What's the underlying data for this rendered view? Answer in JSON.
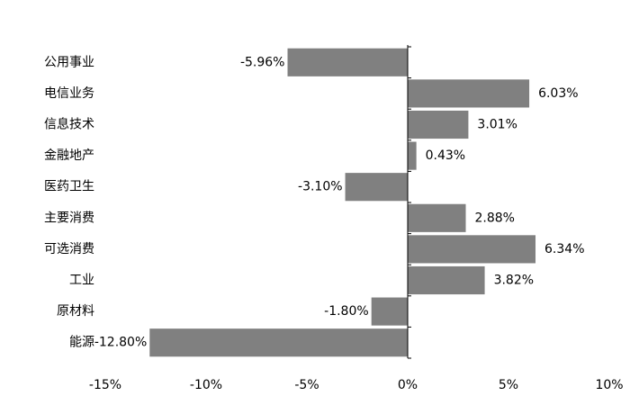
{
  "chart_data": {
    "type": "hbar",
    "categories": [
      "公用事业",
      "电信业务",
      "信息技术",
      "金融地产",
      "医药卫生",
      "主要消费",
      "可选消费",
      "工业",
      "原材料",
      "能源"
    ],
    "values": [
      -5.96,
      6.03,
      3.01,
      0.43,
      -3.1,
      2.88,
      6.34,
      3.82,
      -1.8,
      -12.8
    ],
    "value_labels": [
      "-5.96%",
      "6.03%",
      "3.01%",
      "0.43%",
      "-3.10%",
      "2.88%",
      "6.34%",
      "3.82%",
      "-1.80%",
      "-12.80%"
    ],
    "color": "#808080",
    "xlim": [
      -15,
      10
    ],
    "xticks": [
      {
        "value": -15,
        "label": "-15%"
      },
      {
        "value": -10,
        "label": "-10%"
      },
      {
        "value": -5,
        "label": "-5%"
      },
      {
        "value": 0,
        "label": "0%"
      },
      {
        "value": 5,
        "label": "5%"
      },
      {
        "value": 10,
        "label": "10%"
      }
    ],
    "grid": false
  }
}
